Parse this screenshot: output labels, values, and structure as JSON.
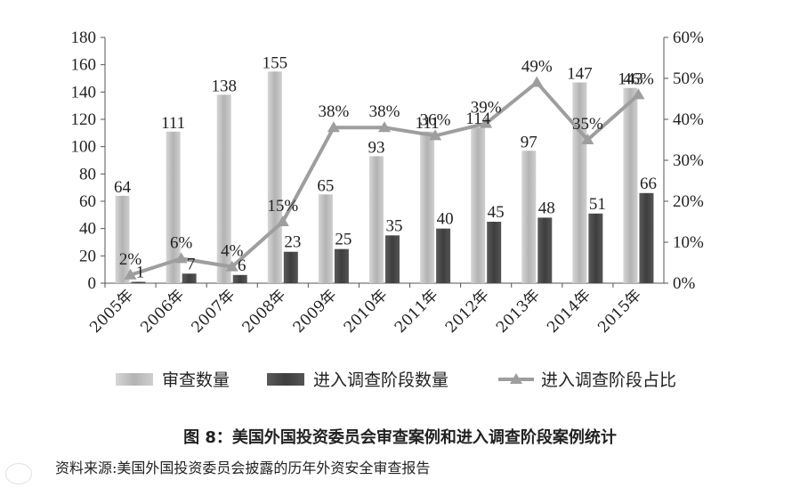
{
  "chart_data": {
    "type": "bar",
    "categories": [
      "2005年",
      "2006年",
      "2007年",
      "2008年",
      "2009年",
      "2010年",
      "2011年",
      "2012年",
      "2013年",
      "2014年",
      "2015年"
    ],
    "series": [
      {
        "name": "审查数量",
        "type": "bar",
        "axis": "left",
        "color": "#bdbdbd",
        "values": [
          64,
          111,
          138,
          155,
          65,
          93,
          111,
          114,
          97,
          147,
          143
        ]
      },
      {
        "name": "进入调查阶段数量",
        "type": "bar",
        "axis": "left",
        "color": "#4d4d4d",
        "values": [
          1,
          7,
          6,
          23,
          25,
          35,
          40,
          45,
          48,
          51,
          66
        ]
      },
      {
        "name": "进入调查阶段占比",
        "type": "line",
        "axis": "right",
        "color": "#9e9e9e",
        "values": [
          2,
          6,
          4,
          15,
          38,
          38,
          36,
          39,
          49,
          35,
          46
        ],
        "labels": [
          "2%",
          "6%",
          "4%",
          "15%",
          "38%",
          "38%",
          "36%",
          "39%",
          "49%",
          "35%",
          "46%"
        ]
      }
    ],
    "y_left": {
      "min": 0,
      "max": 180,
      "step": 20,
      "ticks": [
        "0",
        "20",
        "40",
        "60",
        "80",
        "100",
        "120",
        "140",
        "160",
        "180"
      ]
    },
    "y_right": {
      "min": 0,
      "max": 60,
      "step": 10,
      "ticks": [
        "0%",
        "10%",
        "20%",
        "30%",
        "40%",
        "50%",
        "60%"
      ]
    },
    "legend_position": "bottom"
  },
  "caption": "图 8：美国外国投资委员会审查案例和进入调查阶段案例统计",
  "source": "资料来源:美国外国投资委员会披露的历年外资安全审查报告"
}
